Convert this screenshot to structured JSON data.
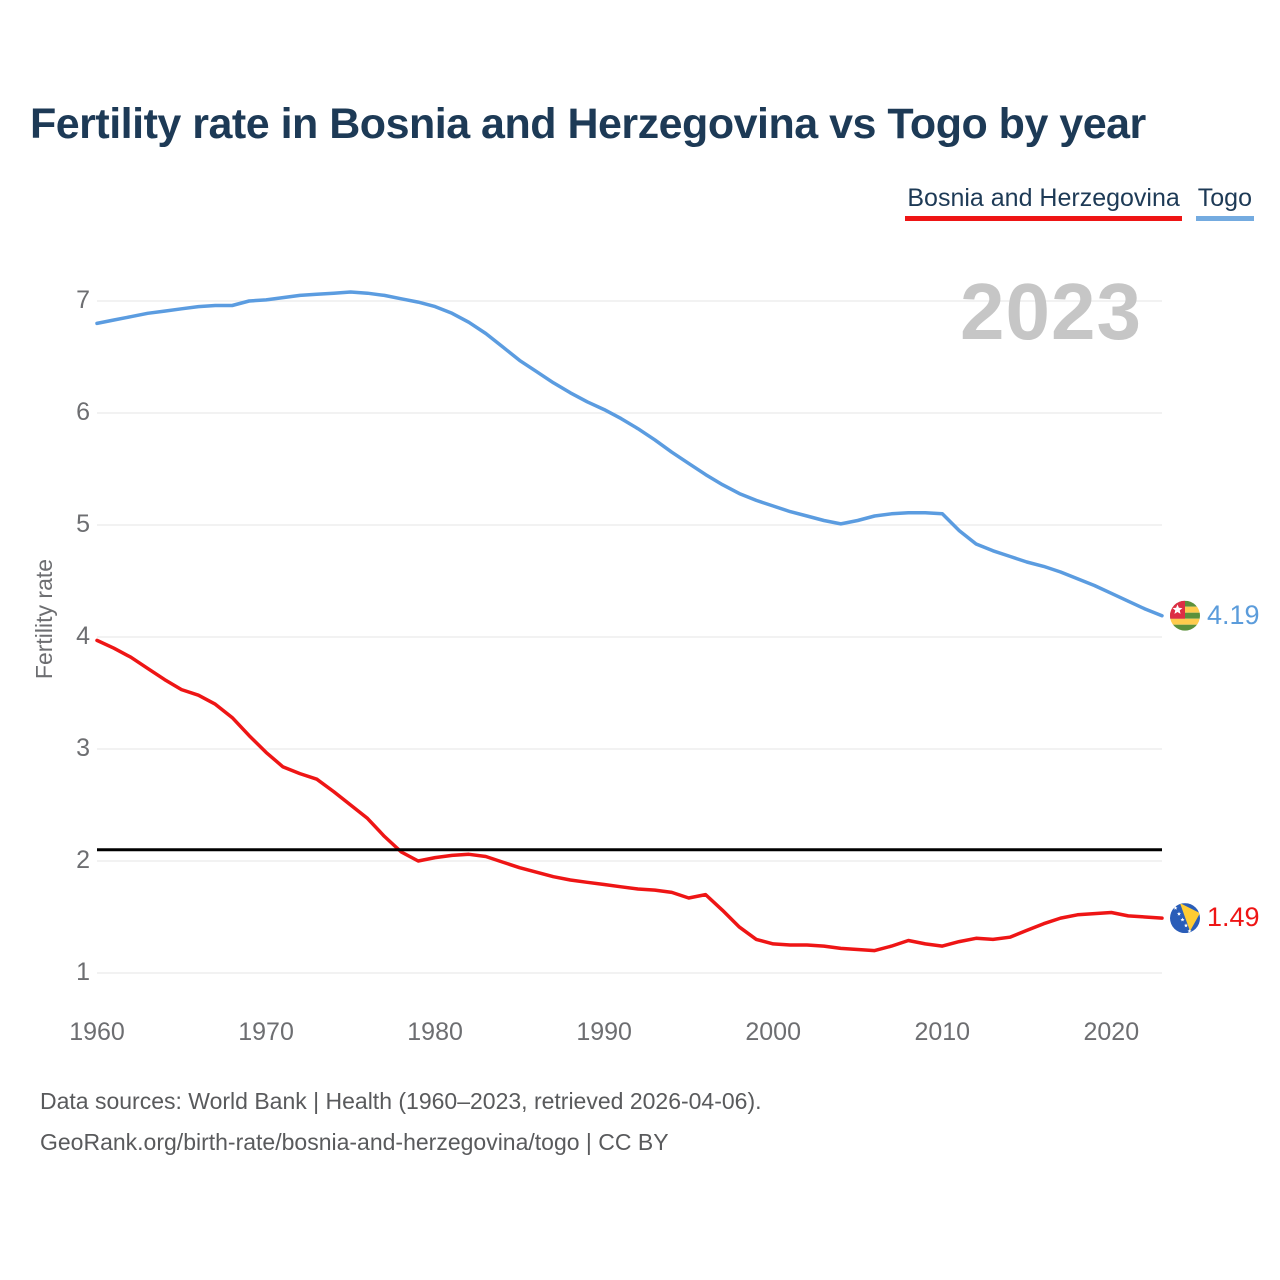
{
  "title": "Fertility rate in Bosnia and Herzegovina vs Togo by year",
  "watermark": "2023",
  "legend": [
    {
      "label": "Bosnia and Herzegovina",
      "color": "#ee1515"
    },
    {
      "label": "Togo",
      "color": "#74abe0"
    }
  ],
  "y_axis": {
    "title": "Fertility rate",
    "ticks": [
      7,
      6,
      5,
      4,
      3,
      2,
      1
    ]
  },
  "x_axis": {
    "ticks": [
      1960,
      1970,
      1980,
      1990,
      2000,
      2010,
      2020
    ]
  },
  "reference_line": {
    "value": 2.1,
    "color": "#000000"
  },
  "end_labels": {
    "togo": "4.19",
    "bosnia": "1.49"
  },
  "footer": {
    "line1": "Data sources: World Bank | Health (1960–2023, retrieved 2026-04-06).",
    "line2": "GeoRank.org/birth-rate/bosnia-and-herzegovina/togo | CC BY"
  },
  "chart_data": {
    "type": "line",
    "title": "Fertility rate in Bosnia and Herzegovina vs Togo by year",
    "xlabel": "",
    "ylabel": "Fertility rate",
    "xlim": [
      1960,
      2023
    ],
    "ylim": [
      1,
      7.2
    ],
    "grid": "horizontal",
    "legend_position": "top-right",
    "reference_line_y": 2.1,
    "x": [
      1960,
      1961,
      1962,
      1963,
      1964,
      1965,
      1966,
      1967,
      1968,
      1969,
      1970,
      1971,
      1972,
      1973,
      1974,
      1975,
      1976,
      1977,
      1978,
      1979,
      1980,
      1981,
      1982,
      1983,
      1984,
      1985,
      1986,
      1987,
      1988,
      1989,
      1990,
      1991,
      1992,
      1993,
      1994,
      1995,
      1996,
      1997,
      1998,
      1999,
      2000,
      2001,
      2002,
      2003,
      2004,
      2005,
      2006,
      2007,
      2008,
      2009,
      2010,
      2011,
      2012,
      2013,
      2014,
      2015,
      2016,
      2017,
      2018,
      2019,
      2020,
      2021,
      2022,
      2023
    ],
    "series": [
      {
        "name": "Togo",
        "color": "#5b9ce0",
        "values": [
          6.8,
          6.83,
          6.86,
          6.89,
          6.91,
          6.93,
          6.95,
          6.96,
          6.96,
          7.0,
          7.01,
          7.03,
          7.05,
          7.06,
          7.07,
          7.08,
          7.07,
          7.05,
          7.02,
          6.99,
          6.95,
          6.89,
          6.81,
          6.71,
          6.59,
          6.47,
          6.37,
          6.27,
          6.18,
          6.1,
          6.03,
          5.95,
          5.86,
          5.76,
          5.65,
          5.55,
          5.45,
          5.36,
          5.28,
          5.22,
          5.17,
          5.12,
          5.08,
          5.04,
          5.01,
          5.04,
          5.08,
          5.1,
          5.11,
          5.11,
          5.1,
          4.95,
          4.83,
          4.77,
          4.72,
          4.67,
          4.63,
          4.58,
          4.52,
          4.46,
          4.39,
          4.32,
          4.25,
          4.19
        ]
      },
      {
        "name": "Bosnia and Herzegovina",
        "color": "#ee1515",
        "values": [
          3.97,
          3.9,
          3.82,
          3.72,
          3.62,
          3.53,
          3.48,
          3.4,
          3.28,
          3.12,
          2.97,
          2.84,
          2.78,
          2.73,
          2.62,
          2.5,
          2.38,
          2.22,
          2.08,
          2.0,
          2.03,
          2.05,
          2.06,
          2.04,
          1.99,
          1.94,
          1.9,
          1.86,
          1.83,
          1.81,
          1.79,
          1.77,
          1.75,
          1.74,
          1.72,
          1.67,
          1.7,
          1.56,
          1.41,
          1.3,
          1.26,
          1.25,
          1.25,
          1.24,
          1.22,
          1.21,
          1.2,
          1.24,
          1.29,
          1.26,
          1.24,
          1.28,
          1.31,
          1.3,
          1.32,
          1.38,
          1.44,
          1.49,
          1.52,
          1.53,
          1.54,
          1.51,
          1.5,
          1.49
        ]
      }
    ],
    "end_markers": [
      {
        "series": "Togo",
        "flag": "togo",
        "label": "4.19"
      },
      {
        "series": "Bosnia and Herzegovina",
        "flag": "bosnia-and-herzegovina",
        "label": "1.49"
      }
    ]
  }
}
